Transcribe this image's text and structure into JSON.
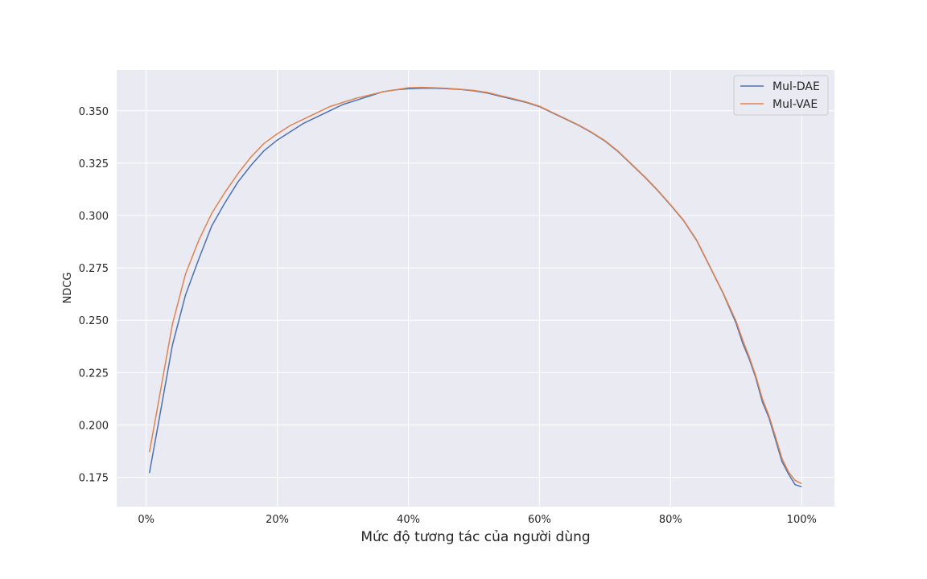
{
  "chart_data": {
    "type": "line",
    "title": "",
    "xlabel": "Mức độ tương tác của người dùng",
    "ylabel": "NDCG",
    "xlim": [
      -0.045,
      1.05
    ],
    "ylim": [
      0.161,
      0.3695
    ],
    "x_ticks": [
      0,
      0.2,
      0.4,
      0.6,
      0.8,
      1.0
    ],
    "x_tick_labels": [
      "0%",
      "20%",
      "40%",
      "60%",
      "80%",
      "100%"
    ],
    "y_ticks": [
      0.175,
      0.2,
      0.225,
      0.25,
      0.275,
      0.3,
      0.325,
      0.35
    ],
    "y_tick_labels": [
      "0.175",
      "0.200",
      "0.225",
      "0.250",
      "0.275",
      "0.300",
      "0.325",
      "0.350"
    ],
    "grid": true,
    "legend": "top-right",
    "background": "#eaeaf2",
    "series": [
      {
        "name": "Mul-DAE",
        "color": "#4c72b0",
        "x": [
          0.005,
          0.02,
          0.04,
          0.06,
          0.08,
          0.1,
          0.12,
          0.14,
          0.16,
          0.18,
          0.2,
          0.22,
          0.24,
          0.26,
          0.28,
          0.3,
          0.32,
          0.34,
          0.36,
          0.38,
          0.4,
          0.42,
          0.44,
          0.46,
          0.48,
          0.5,
          0.52,
          0.54,
          0.56,
          0.58,
          0.6,
          0.62,
          0.64,
          0.66,
          0.68,
          0.7,
          0.72,
          0.74,
          0.76,
          0.78,
          0.8,
          0.82,
          0.84,
          0.86,
          0.88,
          0.9,
          0.91,
          0.92,
          0.93,
          0.94,
          0.95,
          0.96,
          0.97,
          0.98,
          0.99,
          1.0
        ],
        "y": [
          0.177,
          0.203,
          0.238,
          0.262,
          0.279,
          0.295,
          0.306,
          0.316,
          0.324,
          0.331,
          0.336,
          0.34,
          0.344,
          0.347,
          0.35,
          0.353,
          0.355,
          0.357,
          0.359,
          0.36,
          0.3605,
          0.3608,
          0.3608,
          0.3605,
          0.3602,
          0.3595,
          0.3585,
          0.357,
          0.3555,
          0.354,
          0.352,
          0.349,
          0.346,
          0.343,
          0.3395,
          0.3355,
          0.3305,
          0.3245,
          0.3185,
          0.312,
          0.305,
          0.2975,
          0.288,
          0.2755,
          0.263,
          0.2485,
          0.239,
          0.2315,
          0.2225,
          0.211,
          0.2035,
          0.193,
          0.1825,
          0.1765,
          0.1715,
          0.1705
        ]
      },
      {
        "name": "Mul-VAE",
        "color": "#dd8452",
        "x": [
          0.005,
          0.02,
          0.04,
          0.06,
          0.08,
          0.1,
          0.12,
          0.14,
          0.16,
          0.18,
          0.2,
          0.22,
          0.24,
          0.26,
          0.28,
          0.3,
          0.32,
          0.34,
          0.36,
          0.38,
          0.4,
          0.42,
          0.44,
          0.46,
          0.48,
          0.5,
          0.52,
          0.54,
          0.56,
          0.58,
          0.6,
          0.62,
          0.64,
          0.66,
          0.68,
          0.7,
          0.72,
          0.74,
          0.76,
          0.78,
          0.8,
          0.82,
          0.84,
          0.86,
          0.88,
          0.9,
          0.91,
          0.92,
          0.93,
          0.94,
          0.95,
          0.96,
          0.97,
          0.98,
          0.99,
          1.0
        ],
        "y": [
          0.187,
          0.213,
          0.248,
          0.272,
          0.288,
          0.301,
          0.311,
          0.32,
          0.328,
          0.3345,
          0.339,
          0.343,
          0.346,
          0.349,
          0.352,
          0.354,
          0.356,
          0.3575,
          0.359,
          0.36,
          0.361,
          0.3612,
          0.361,
          0.3607,
          0.3603,
          0.3597,
          0.3588,
          0.3573,
          0.3558,
          0.3542,
          0.3522,
          0.3492,
          0.3462,
          0.3432,
          0.3397,
          0.3357,
          0.3307,
          0.3247,
          0.3187,
          0.3122,
          0.3052,
          0.2977,
          0.2882,
          0.2757,
          0.2632,
          0.2495,
          0.2405,
          0.2325,
          0.2235,
          0.2125,
          0.2045,
          0.1945,
          0.184,
          0.1775,
          0.1735,
          0.172
        ]
      }
    ]
  }
}
